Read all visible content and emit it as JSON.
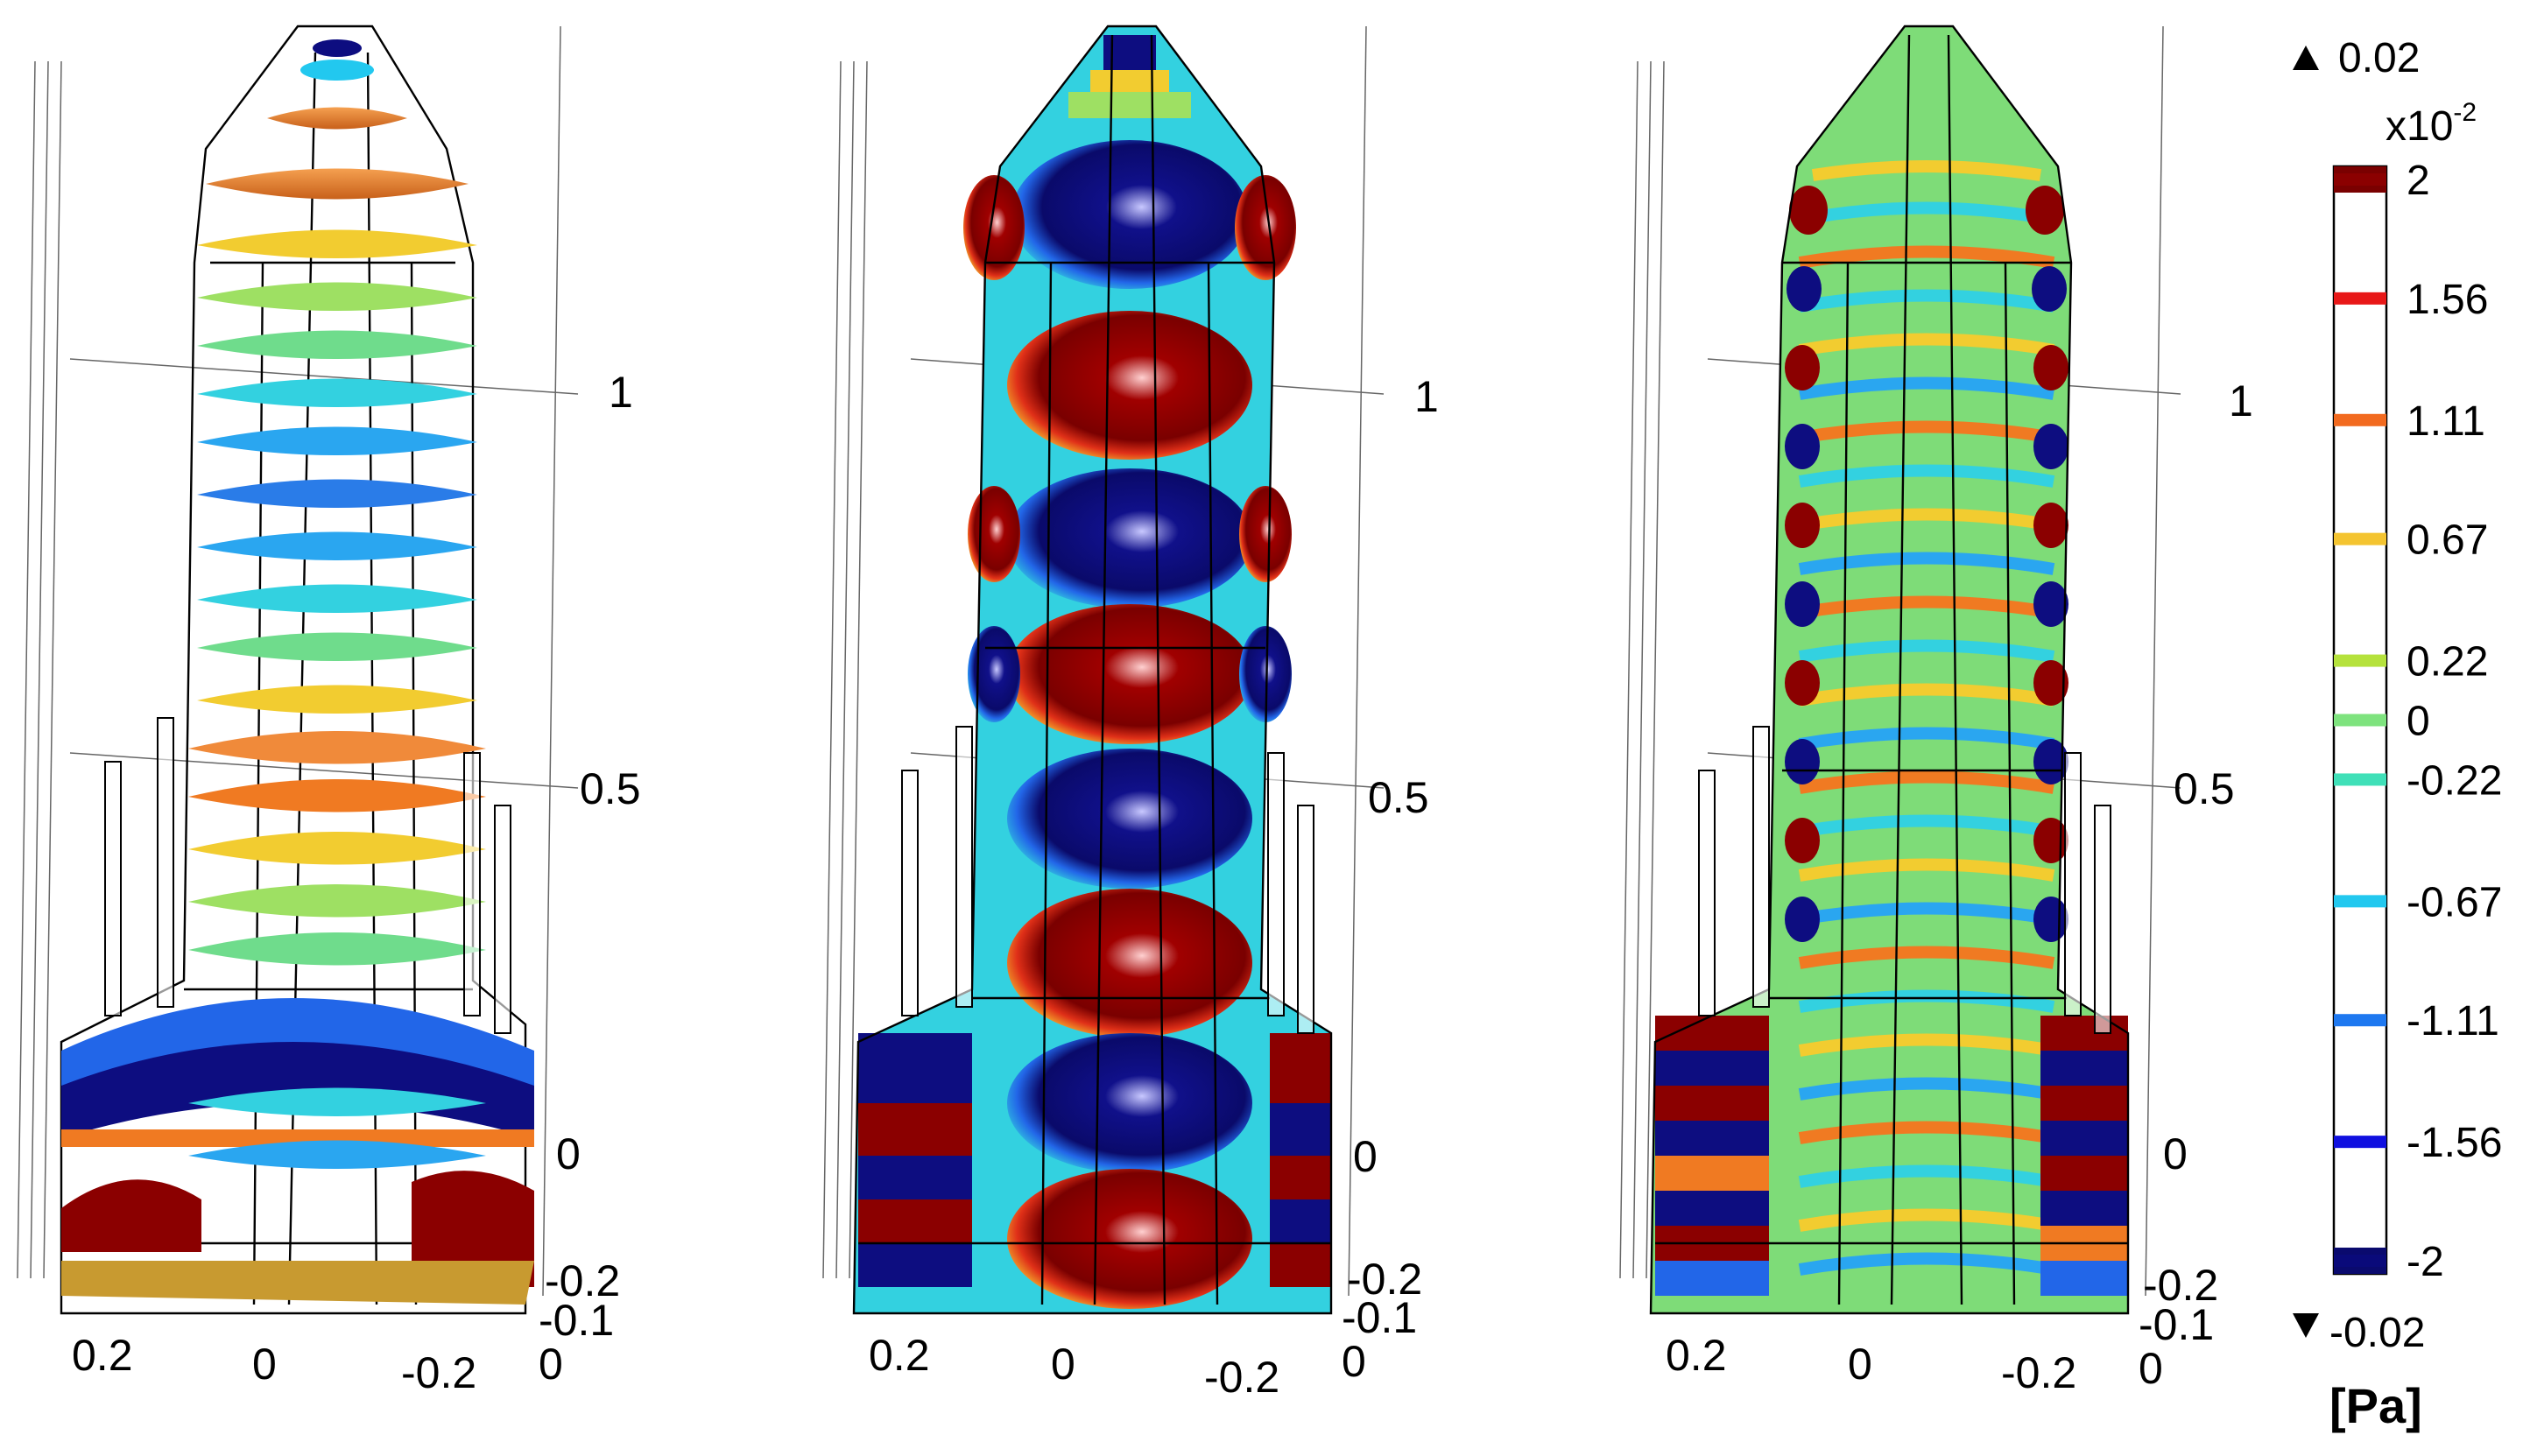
{
  "colorbar": {
    "max_label": "0.02",
    "min_label": "-0.02",
    "exponent_label": "x10",
    "exponent_power": "-2",
    "unit": "[Pa]",
    "ticks": [
      {
        "label": "2",
        "value": 2,
        "color": "#8b0000"
      },
      {
        "label": "1.56",
        "value": 1.56,
        "color": "#e81818"
      },
      {
        "label": "1.11",
        "value": 1.11,
        "color": "#f26a1f"
      },
      {
        "label": "0.67",
        "value": 0.67,
        "color": "#f4c430"
      },
      {
        "label": "0.22",
        "value": 0.22,
        "color": "#b5e23c"
      },
      {
        "label": "0",
        "value": 0,
        "color": "#7ee37e"
      },
      {
        "label": "-0.22",
        "value": -0.22,
        "color": "#3fe0b8"
      },
      {
        "label": "-0.67",
        "value": -0.67,
        "color": "#22c8ef"
      },
      {
        "label": "-1.11",
        "value": -1.11,
        "color": "#1e78f0"
      },
      {
        "label": "-1.56",
        "value": -1.56,
        "color": "#1010e0"
      },
      {
        "label": "-2",
        "value": -2,
        "color": "#0a0a7a"
      }
    ],
    "bar_top_color": "#7a0000",
    "bar_bottom_color": "#0a0a6e"
  },
  "panels": [
    {
      "name": "slices",
      "axis_labels": {
        "z_top": "1",
        "z_mid": "0.5",
        "z_zero": "0",
        "z_neg": "-0.2",
        "y_neg": "-0.1",
        "y_zero": "0",
        "x_pos": "0.2",
        "x_zero": "0",
        "x_neg": "-0.2"
      }
    },
    {
      "name": "surface-standing",
      "axis_labels": {
        "z_top": "1",
        "z_mid": "0.5",
        "z_zero": "0",
        "z_neg": "-0.2",
        "y_neg": "-0.1",
        "y_zero": "0",
        "x_pos": "0.2",
        "x_zero": "0",
        "x_neg": "-0.2"
      }
    },
    {
      "name": "surface-higher-mode",
      "axis_labels": {
        "z_top": "1",
        "z_mid": "0.5",
        "z_zero": "0",
        "z_neg": "-0.2",
        "y_neg": "-0.1",
        "y_zero": "0",
        "x_pos": "0.2",
        "x_zero": "0",
        "x_neg": "-0.2"
      }
    }
  ],
  "colors": {
    "dark_red": "#8b0000",
    "red": "#e0201a",
    "orange": "#f07a22",
    "yellow": "#f2cc30",
    "light_green": "#9ee063",
    "green": "#6fdc8c",
    "cyan": "#33d1e0",
    "light_blue": "#2aa6f0",
    "blue": "#2266e8",
    "dark_blue": "#0d0d80"
  }
}
